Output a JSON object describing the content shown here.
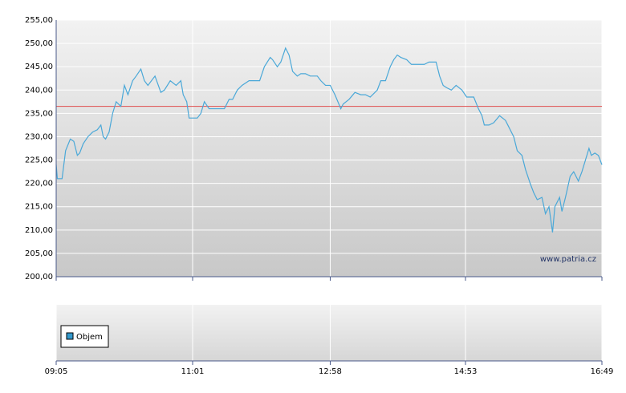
{
  "chart_data": {
    "type": "line",
    "x": [
      545,
      546,
      550,
      553,
      557,
      560,
      563,
      565,
      568,
      572,
      576,
      580,
      583,
      585,
      587,
      590,
      593,
      596,
      600,
      603,
      606,
      610,
      613,
      617,
      620,
      623,
      629,
      634,
      637,
      642,
      647,
      651,
      653,
      656,
      658,
      661,
      665,
      668,
      671,
      675,
      678,
      683,
      688,
      692,
      695,
      699,
      703,
      709,
      714,
      718,
      722,
      727,
      729,
      733,
      736,
      740,
      743,
      746,
      750,
      753,
      757,
      761,
      767,
      770,
      774,
      778,
      782,
      787,
      789,
      794,
      799,
      804,
      808,
      812,
      818,
      821,
      825,
      829,
      832,
      835,
      838,
      843,
      847,
      852,
      858,
      862,
      868,
      871,
      874,
      877,
      881,
      885,
      890,
      894,
      900,
      904,
      907,
      909,
      913,
      917,
      922,
      927,
      930,
      934,
      937,
      941,
      944,
      948,
      951,
      954,
      958,
      961,
      964,
      967,
      969,
      973,
      975,
      978,
      982,
      985,
      989,
      992,
      995,
      998,
      1000,
      1003,
      1006,
      1009
    ],
    "series": [
      {
        "color": "#4aa8d8",
        "values": [
          224,
          221,
          221,
          227,
          229.5,
          229,
          226,
          226.5,
          228.5,
          230,
          231,
          231.5,
          232.5,
          230,
          229.5,
          231,
          235,
          237.5,
          236.5,
          241,
          239,
          242,
          243,
          244.5,
          242,
          241,
          243,
          239.5,
          240,
          242,
          241,
          242,
          239,
          237.5,
          234,
          234,
          234,
          235,
          237.5,
          236,
          236,
          236,
          236,
          238,
          238,
          240,
          241,
          242,
          242,
          242,
          245,
          247,
          246.5,
          245,
          246,
          249,
          247.5,
          244,
          243,
          243.5,
          243.5,
          243,
          243,
          242,
          241,
          241,
          239,
          236,
          237,
          238,
          239.5,
          239,
          239,
          238.5,
          240,
          242,
          242,
          245,
          246.5,
          247.5,
          247,
          246.5,
          245.5,
          245.5,
          245.5,
          246,
          246,
          243,
          241,
          240.5,
          240,
          241,
          240,
          238.5,
          238.5,
          236,
          234.5,
          232.5,
          232.5,
          233,
          234.5,
          233.5,
          232,
          230,
          227,
          226,
          223,
          220,
          218,
          216.5,
          217,
          213.5,
          215,
          209.5,
          215,
          217,
          214,
          217,
          221.5,
          222.5,
          220.5,
          222.5,
          225,
          227.5,
          226,
          226.5,
          226,
          224
        ]
      }
    ],
    "reference_line": {
      "value": 236.5,
      "color": "#e05050"
    },
    "xlim": [
      545,
      1009
    ],
    "xticks": [
      {
        "value": 545,
        "label": "09:05"
      },
      {
        "value": 661,
        "label": "11:01"
      },
      {
        "value": 778,
        "label": "12:58"
      },
      {
        "value": 893,
        "label": "14:53"
      },
      {
        "value": 1009,
        "label": "16:49"
      }
    ],
    "ylim": [
      200,
      255
    ],
    "yticks": [
      {
        "value": 200,
        "label": "200,00"
      },
      {
        "value": 205,
        "label": "205,00"
      },
      {
        "value": 210,
        "label": "210,00"
      },
      {
        "value": 215,
        "label": "215,00"
      },
      {
        "value": 220,
        "label": "220,00"
      },
      {
        "value": 225,
        "label": "225,00"
      },
      {
        "value": 230,
        "label": "230,00"
      },
      {
        "value": 235,
        "label": "235,00"
      },
      {
        "value": 240,
        "label": "240,00"
      },
      {
        "value": 245,
        "label": "245,00"
      },
      {
        "value": 250,
        "label": "250,00"
      },
      {
        "value": 255,
        "label": "255,00"
      }
    ],
    "grid": true,
    "watermark": "www.patria.cz",
    "volume_legend": {
      "name": "Objem",
      "color": "#3399cc"
    }
  }
}
